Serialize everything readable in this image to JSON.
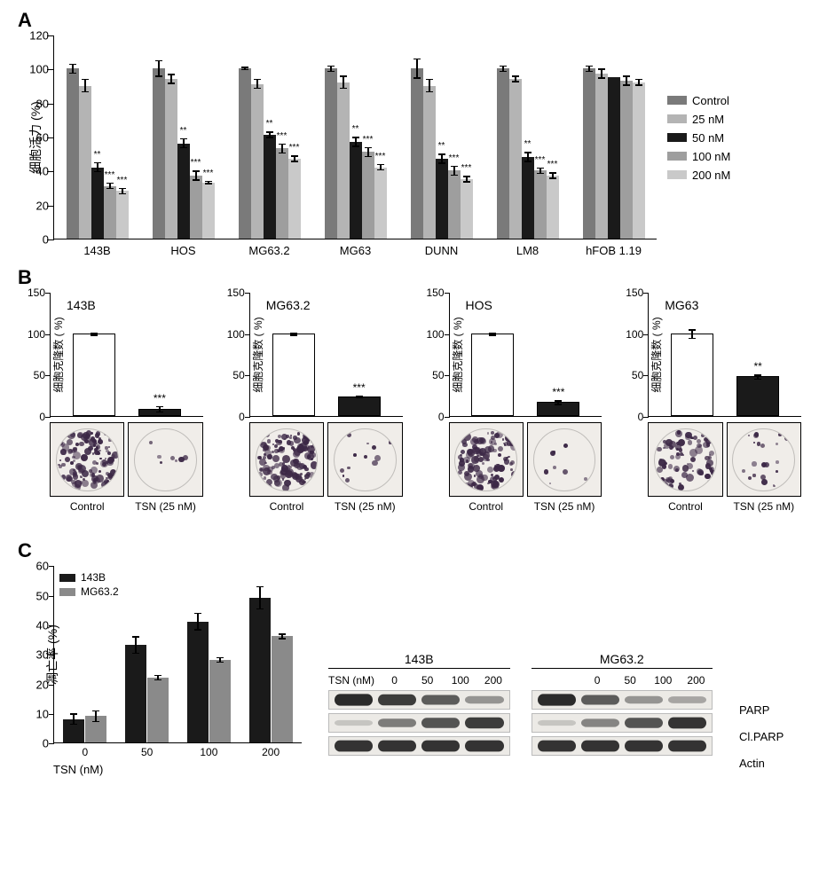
{
  "panelA": {
    "label": "A",
    "ylabel": "细胞活力 (%)",
    "ymax": 120,
    "yticks": [
      0,
      20,
      40,
      60,
      80,
      100,
      120
    ],
    "categories": [
      "143B",
      "HOS",
      "MG63.2",
      "MG63",
      "DUNN",
      "LM8",
      "hFOB 1.19"
    ],
    "legend": [
      "Control",
      "25 nM",
      "50 nM",
      "100 nM",
      "200 nM"
    ],
    "colors": [
      "#7a7a7a",
      "#b4b4b4",
      "#1a1a1a",
      "#9e9e9e",
      "#c9c9c9"
    ],
    "series": [
      [
        100,
        90,
        42,
        31,
        28
      ],
      [
        100,
        94,
        56,
        37,
        33
      ],
      [
        100,
        91,
        61,
        53,
        47
      ],
      [
        100,
        92,
        57,
        51,
        42
      ],
      [
        100,
        90,
        47,
        40,
        35
      ],
      [
        100,
        94,
        48,
        40,
        37
      ],
      [
        100,
        97,
        95,
        93,
        92
      ]
    ],
    "errors": [
      [
        3,
        4,
        3,
        2,
        2
      ],
      [
        5,
        3,
        3,
        3,
        1
      ],
      [
        1,
        3,
        2,
        3,
        2
      ],
      [
        2,
        4,
        3,
        3,
        2
      ],
      [
        6,
        4,
        3,
        3,
        2
      ],
      [
        2,
        2,
        3,
        2,
        2
      ],
      [
        2,
        3,
        0,
        3,
        2
      ]
    ],
    "sig": [
      [
        "",
        "",
        "**",
        "***",
        "***"
      ],
      [
        "",
        "",
        "**",
        "***",
        "***"
      ],
      [
        "",
        "",
        "**",
        "***",
        "***"
      ],
      [
        "",
        "",
        "**",
        "***",
        "***"
      ],
      [
        "",
        "",
        "**",
        "***",
        "***"
      ],
      [
        "",
        "",
        "**",
        "***",
        "***"
      ],
      [
        "",
        "",
        "",
        "",
        ""
      ]
    ]
  },
  "panelB": {
    "label": "B",
    "ylabel": "细胞克隆数 ( %)",
    "yticks": [
      0,
      50,
      100,
      150
    ],
    "ymax": 150,
    "bar_colors": [
      "#ffffff",
      "#1a1a1a"
    ],
    "cells": [
      {
        "name": "143B",
        "values": [
          100,
          9
        ],
        "errors": [
          2,
          4
        ],
        "sig": "***",
        "density": [
          0.9,
          0.05
        ]
      },
      {
        "name": "MG63.2",
        "values": [
          100,
          24
        ],
        "errors": [
          2,
          2
        ],
        "sig": "***",
        "density": [
          0.95,
          0.1
        ]
      },
      {
        "name": "HOS",
        "values": [
          100,
          17
        ],
        "errors": [
          2,
          3
        ],
        "sig": "***",
        "density": [
          0.85,
          0.06
        ]
      },
      {
        "name": "MG63",
        "values": [
          100,
          48
        ],
        "errors": [
          6,
          3
        ],
        "sig": "**",
        "density": [
          0.6,
          0.15
        ]
      }
    ],
    "captions": [
      "Control",
      "TSN (25 nM)"
    ]
  },
  "panelC": {
    "label": "C",
    "ylabel": "凋亡率 (%)",
    "ymax": 60,
    "yticks": [
      0,
      10,
      20,
      30,
      40,
      50,
      60
    ],
    "legend": [
      "143B",
      "MG63.2"
    ],
    "colors": [
      "#1a1a1a",
      "#8a8a8a"
    ],
    "x_title": "TSN  (nM)",
    "categories": [
      "0",
      "50",
      "100",
      "200"
    ],
    "series_143B": [
      8,
      33,
      41,
      49
    ],
    "series_MG63_2": [
      9,
      22,
      28,
      36
    ],
    "errors_143B": [
      2,
      3,
      3,
      4
    ],
    "errors_MG63_2": [
      2,
      1,
      1,
      1
    ],
    "blots": {
      "dose_label": "TSN (nM)",
      "doses": [
        "0",
        "50",
        "100",
        "200"
      ],
      "cols": [
        "143B",
        "MG63.2"
      ],
      "proteins": [
        "PARP",
        "Cl.PARP",
        "Actin"
      ],
      "intensities": {
        "143B": {
          "PARP": [
            1.0,
            0.9,
            0.7,
            0.35
          ],
          "Cl.PARP": [
            0.05,
            0.5,
            0.75,
            0.9
          ],
          "Actin": [
            0.95,
            0.95,
            0.95,
            0.95
          ]
        },
        "MG63.2": {
          "PARP": [
            1.0,
            0.7,
            0.35,
            0.25
          ],
          "Cl.PARP": [
            0.05,
            0.45,
            0.75,
            0.95
          ],
          "Actin": [
            0.95,
            0.95,
            0.95,
            0.95
          ]
        }
      }
    }
  }
}
